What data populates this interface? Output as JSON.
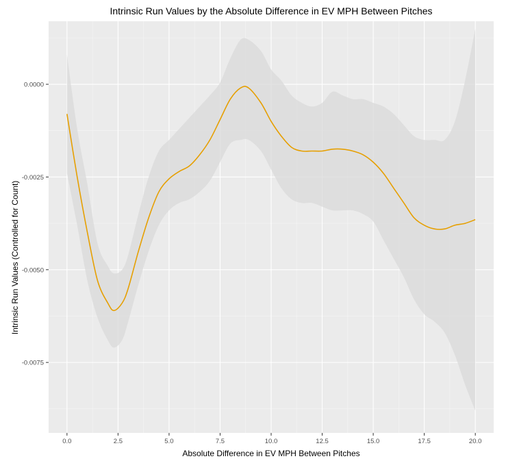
{
  "chart_data": {
    "type": "line",
    "title": "Intrinsic Run Values by the Absolute Difference in EV MPH Between Pitches",
    "xlabel": "Absolute Difference in EV MPH Between Pitches",
    "ylabel": "Intrinsic Run Values (Controlled for Count)",
    "xlim": [
      -0.9,
      20.9
    ],
    "ylim": [
      -0.0094,
      0.0017
    ],
    "xticks": [
      0,
      2.5,
      5,
      7.5,
      10,
      12.5,
      15,
      17.5,
      20
    ],
    "xtick_labels": [
      "0.0",
      "2.5",
      "5.0",
      "7.5",
      "10.0",
      "12.5",
      "15.0",
      "17.5",
      "20.0"
    ],
    "yticks": [
      0,
      -0.0025,
      -0.005,
      -0.0075
    ],
    "ytick_labels": [
      "0.0000",
      "-0.0025",
      "-0.0050",
      "-0.0075"
    ],
    "grid": true,
    "line_color": "#E69F00",
    "band_color": "#d9d9d9",
    "panel_color": "#ebebeb",
    "series": [
      {
        "x": [
          0,
          0.5,
          1,
          1.5,
          2,
          2.3,
          2.7,
          3,
          3.5,
          4,
          4.5,
          5,
          5.5,
          6,
          6.5,
          7,
          7.5,
          8,
          8.5,
          8.9,
          9.5,
          10,
          10.5,
          11,
          11.5,
          12,
          12.5,
          13,
          13.5,
          14,
          14.5,
          15,
          15.5,
          16,
          16.5,
          17,
          17.5,
          18,
          18.5,
          19,
          19.5,
          20
        ],
        "y": [
          -0.0008,
          -0.0025,
          -0.004,
          -0.0053,
          -0.0059,
          -0.0061,
          -0.0059,
          -0.0055,
          -0.0045,
          -0.0036,
          -0.0029,
          -0.00255,
          -0.00235,
          -0.0022,
          -0.0019,
          -0.0015,
          -0.00095,
          -0.0004,
          -0.0001,
          -0.0001,
          -0.0005,
          -0.001,
          -0.0014,
          -0.0017,
          -0.0018,
          -0.0018,
          -0.0018,
          -0.00175,
          -0.00175,
          -0.0018,
          -0.0019,
          -0.0021,
          -0.0024,
          -0.0028,
          -0.0032,
          -0.0036,
          -0.0038,
          -0.0039,
          -0.0039,
          -0.0038,
          -0.00375,
          -0.00365
        ],
        "lower": [
          -0.0024,
          -0.0038,
          -0.0053,
          -0.0063,
          -0.0069,
          -0.0071,
          -0.0069,
          -0.0064,
          -0.0054,
          -0.0045,
          -0.0038,
          -0.0034,
          -0.0032,
          -0.0031,
          -0.0029,
          -0.0026,
          -0.0021,
          -0.0016,
          -0.0015,
          -0.0015,
          -0.0018,
          -0.0023,
          -0.0028,
          -0.0031,
          -0.0032,
          -0.0032,
          -0.0033,
          -0.0034,
          -0.0034,
          -0.0034,
          -0.0035,
          -0.0037,
          -0.0042,
          -0.0047,
          -0.0052,
          -0.0058,
          -0.0062,
          -0.0064,
          -0.0067,
          -0.0073,
          -0.0081,
          -0.0088
        ],
        "upper": [
          0.0008,
          -0.0012,
          -0.0027,
          -0.0043,
          -0.0049,
          -0.0051,
          -0.005,
          -0.0046,
          -0.0035,
          -0.0025,
          -0.0018,
          -0.0015,
          -0.0012,
          -0.0009,
          -0.0006,
          -0.0003,
          5e-05,
          0.0007,
          0.0012,
          0.0012,
          0.0009,
          0.0004,
          0.0001,
          -0.0003,
          -0.0005,
          -0.0006,
          -0.0005,
          -0.0002,
          -0.0003,
          -0.0004,
          -0.0004,
          -0.0005,
          -0.0006,
          -0.0008,
          -0.0011,
          -0.0014,
          -0.0015,
          -0.0015,
          -0.0015,
          -0.001,
          0.0001,
          0.0015
        ]
      }
    ]
  }
}
